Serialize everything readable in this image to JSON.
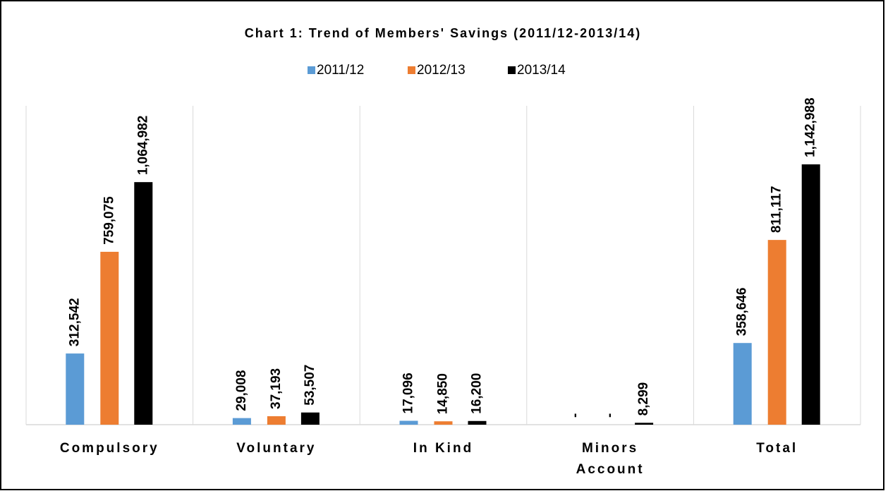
{
  "chart_data": {
    "type": "bar",
    "title": "Chart 1: Trend of Members' Savings (2011/12-2013/14)",
    "categories": [
      "Compulsory",
      "Voluntary",
      "In Kind",
      "Minors Account",
      "Total"
    ],
    "series": [
      {
        "name": "2011/12",
        "color": "#5b9bd5",
        "values": [
          312542,
          29008,
          17096,
          0,
          358646
        ],
        "value_labels": [
          "312,542",
          "29,008",
          "17,096",
          "-",
          "358,646"
        ]
      },
      {
        "name": "2012/13",
        "color": "#ed7d31",
        "values": [
          759075,
          37193,
          14850,
          0,
          811117
        ],
        "value_labels": [
          "759,075",
          "37,193",
          "14,850",
          "-",
          "811,117"
        ]
      },
      {
        "name": "2013/14",
        "color": "#000000",
        "values": [
          1064982,
          53507,
          16200,
          8299,
          1142988
        ],
        "value_labels": [
          "1,064,982",
          "53,507",
          "16,200",
          "8,299",
          "1,142,988"
        ]
      }
    ],
    "ylim": [
      0,
      1400000
    ],
    "legend": "top"
  }
}
